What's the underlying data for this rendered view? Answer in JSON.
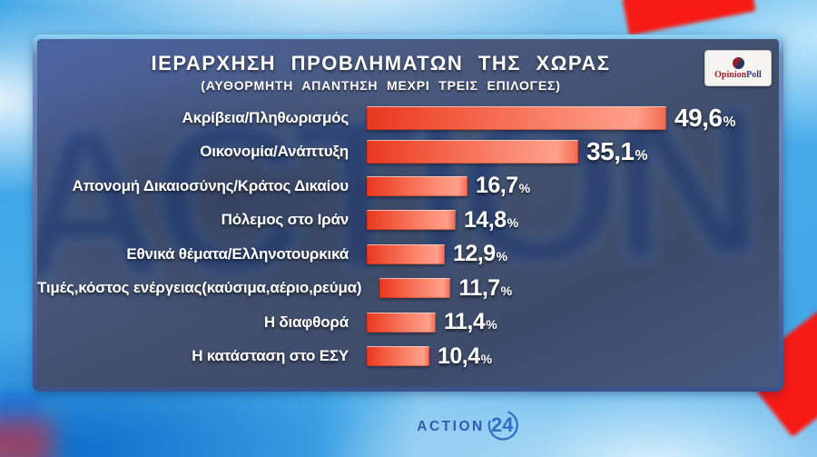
{
  "header": {
    "title": "ΙΕΡΑΡΧΗΣΗ  ΠΡΟΒΛΗΜΑΤΩΝ  ΤΗΣ  ΧΩΡΑΣ",
    "subtitle": "(ΑΥΘΟΡΜΗΤΗ  ΑΠΑΝΤΗΣΗ  ΜΕΧΡΙ  ΤΡΕΙΣ  ΕΠΙΛΟΓΕΣ)"
  },
  "source_badge": {
    "label": "OpinionPoll",
    "part1": "Opinion",
    "part2": "Poll",
    "pie_colors": [
      "#8f1f2d",
      "#25355f"
    ]
  },
  "channel_logo": {
    "name": "ACTION",
    "number": "24",
    "color": "#2b64b4"
  },
  "colors": {
    "bar_red": "#f2502f",
    "panel_blue": "#455780",
    "background_sky": "#49ade9",
    "accent_red": "#f81a14",
    "text": "#ffffff"
  },
  "chart_data": {
    "type": "bar",
    "orientation": "horizontal",
    "title": "ΙΕΡΑΡΧΗΣΗ ΠΡΟΒΛΗΜΑΤΩΝ ΤΗΣ ΧΩΡΑΣ",
    "subtitle": "(ΑΥΘΟΡΜΗΤΗ ΑΠΑΝΤΗΣΗ ΜΕΧΡΙ ΤΡΕΙΣ ΕΠΙΛΟΓΕΣ)",
    "unit": "%",
    "xlim": [
      0,
      55
    ],
    "legend": null,
    "grid": false,
    "categories": [
      "Ακρίβεια/Πληθωρισμός",
      "Οικονομία/Ανάπτυξη",
      "Απονομή Δικαιοσύνης/Κράτος Δικαίου",
      "Πόλεμος στο Ιράν",
      "Εθνικά θέματα/Ελληνοτουρκικά",
      "Τιμές,κόστος ενέργειας(καύσιμα,αέριο,ρεύμα)",
      "Η διαφθορά",
      "Η κατάσταση στο ΕΣΥ"
    ],
    "values": [
      49.6,
      35.1,
      16.7,
      14.8,
      12.9,
      11.7,
      11.4,
      10.4
    ],
    "value_labels": [
      "49,6",
      "35,1",
      "16,7",
      "14,8",
      "12,9",
      "11,7",
      "11,4",
      "10,4"
    ]
  }
}
